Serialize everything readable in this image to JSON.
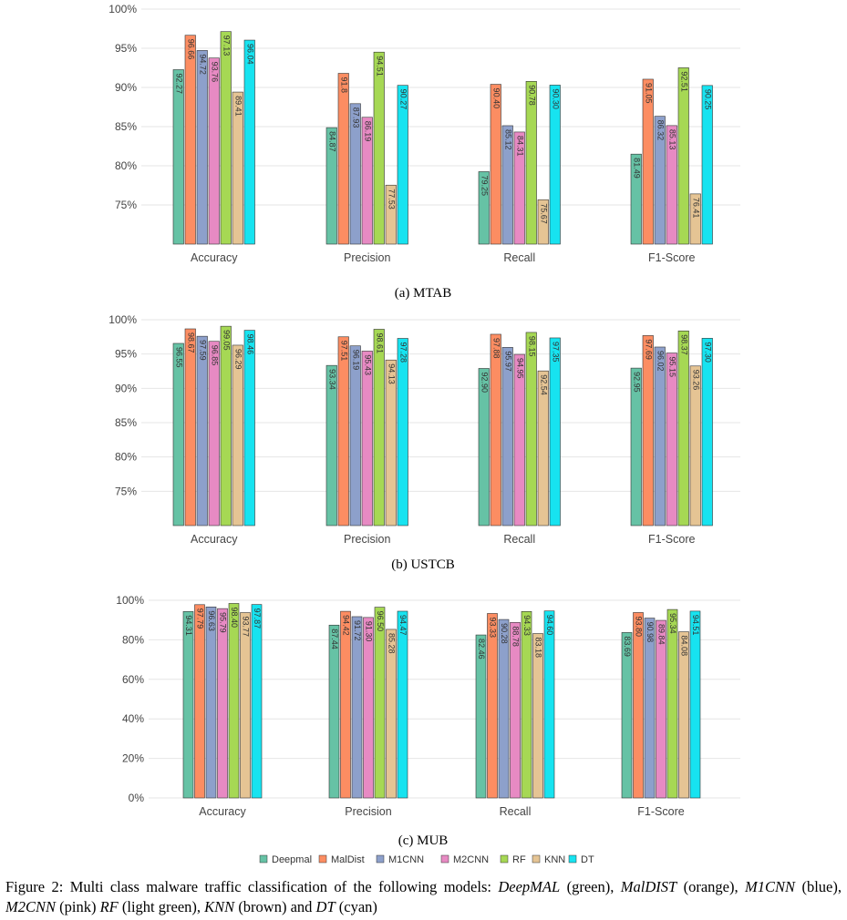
{
  "legend": [
    "Deepmal",
    "MalDist",
    "M1CNN",
    "M2CNN",
    "RF",
    "KNN",
    "DT"
  ],
  "colors": [
    "#66c2a5",
    "#fc8d62",
    "#8da0cb",
    "#e78ac3",
    "#a6d854",
    "#e5c494",
    "#17e3f0"
  ],
  "chart_data": [
    {
      "type": "bar",
      "subtitle": "(a) MTAB",
      "categories": [
        "Accuracy",
        "Precision",
        "Recall",
        "F1-Score"
      ],
      "ylim": [
        70,
        100
      ],
      "ytick_values": [
        75,
        80,
        85,
        90,
        95,
        100
      ],
      "ytick_labels": [
        "75%",
        "80%",
        "85%",
        "90%",
        "95%",
        "100%"
      ],
      "series": [
        {
          "name": "Deepmal",
          "values": [
            92.27,
            84.87,
            79.25,
            81.49
          ],
          "labels": [
            "92.27",
            "84.87",
            "79.25",
            "81.49"
          ]
        },
        {
          "name": "MalDist",
          "values": [
            96.66,
            91.8,
            90.4,
            91.05
          ],
          "labels": [
            "96.66",
            "91.8",
            "90.40",
            "91.05"
          ]
        },
        {
          "name": "M1CNN",
          "values": [
            94.72,
            87.93,
            85.12,
            86.32
          ],
          "labels": [
            "94.72",
            "87.93",
            "85.12",
            "86.32"
          ]
        },
        {
          "name": "M2CNN",
          "values": [
            93.76,
            86.19,
            84.31,
            85.13
          ],
          "labels": [
            "93.76",
            "86.19",
            "84.31",
            "85.13"
          ]
        },
        {
          "name": "RF",
          "values": [
            97.13,
            94.51,
            90.78,
            92.51
          ],
          "labels": [
            "97.13",
            "94.51",
            "90.78",
            "92.51"
          ]
        },
        {
          "name": "KNN",
          "values": [
            89.41,
            77.53,
            75.67,
            76.41
          ],
          "labels": [
            "89.41",
            "77.53",
            "75.67",
            "76.41"
          ]
        },
        {
          "name": "DT",
          "values": [
            96.04,
            90.27,
            90.3,
            90.25
          ],
          "labels": [
            "96.04",
            "90.27",
            "90.30",
            "90.25"
          ]
        }
      ]
    },
    {
      "type": "bar",
      "subtitle": "(b) USTCB",
      "categories": [
        "Accuracy",
        "Precision",
        "Recall",
        "F1-Score"
      ],
      "ylim": [
        70,
        100
      ],
      "ytick_values": [
        75,
        80,
        85,
        90,
        95,
        100
      ],
      "ytick_labels": [
        "75%",
        "80%",
        "85%",
        "90%",
        "95%",
        "100%"
      ],
      "series": [
        {
          "name": "Deepmal",
          "values": [
            96.55,
            93.34,
            92.9,
            92.95
          ],
          "labels": [
            "96.55",
            "93.34",
            "92.90",
            "92.95"
          ]
        },
        {
          "name": "MalDist",
          "values": [
            98.67,
            97.51,
            97.88,
            97.69
          ],
          "labels": [
            "98.67",
            "97.51",
            "97.88",
            "97.69"
          ]
        },
        {
          "name": "M1CNN",
          "values": [
            97.59,
            96.19,
            95.97,
            96.02
          ],
          "labels": [
            "97.59",
            "96.19",
            "95.97",
            "96.02"
          ]
        },
        {
          "name": "M2CNN",
          "values": [
            96.85,
            95.43,
            94.95,
            95.15
          ],
          "labels": [
            "96.85",
            "95.43",
            "94.95",
            "95.15"
          ]
        },
        {
          "name": "RF",
          "values": [
            99.05,
            98.61,
            98.15,
            98.37
          ],
          "labels": [
            "99.05",
            "98.61",
            "98.15",
            "98.37"
          ]
        },
        {
          "name": "KNN",
          "values": [
            96.29,
            94.13,
            92.54,
            93.26
          ],
          "labels": [
            "96.29",
            "94.13",
            "92.54",
            "93.26"
          ]
        },
        {
          "name": "DT",
          "values": [
            98.46,
            97.28,
            97.35,
            97.3
          ],
          "labels": [
            "98.46",
            "97.28",
            "97.35",
            "97.30"
          ]
        }
      ]
    },
    {
      "type": "bar",
      "subtitle": "(c) MUB",
      "categories": [
        "Accuracy",
        "Precision",
        "Recall",
        "F1-Score"
      ],
      "ylim": [
        0,
        100
      ],
      "ytick_values": [
        0,
        20,
        40,
        60,
        80,
        100
      ],
      "ytick_labels": [
        "0%",
        "20%",
        "40%",
        "60%",
        "80%",
        "100%"
      ],
      "series": [
        {
          "name": "Deepmal",
          "values": [
            94.31,
            87.44,
            82.46,
            83.69
          ],
          "labels": [
            "94.31",
            "87.44",
            "82.46",
            "83.69"
          ]
        },
        {
          "name": "MalDist",
          "values": [
            97.79,
            94.42,
            93.33,
            93.8
          ],
          "labels": [
            "97.79",
            "94.42",
            "93.33",
            "93.80"
          ]
        },
        {
          "name": "M1CNN",
          "values": [
            96.63,
            91.72,
            90.28,
            90.98
          ],
          "labels": [
            "96.63",
            "91.72",
            "90.28",
            "90.98"
          ]
        },
        {
          "name": "M2CNN",
          "values": [
            95.79,
            91.3,
            88.78,
            89.84
          ],
          "labels": [
            "95.79",
            "91.30",
            "88.78",
            "89.84"
          ]
        },
        {
          "name": "RF",
          "values": [
            98.4,
            96.5,
            94.33,
            95.34
          ],
          "labels": [
            "98.40",
            "96.50",
            "94.33",
            "95.34"
          ]
        },
        {
          "name": "KNN",
          "values": [
            93.77,
            85.28,
            83.18,
            84.08
          ],
          "labels": [
            "93.77",
            "85.28",
            "83.18",
            "84.08"
          ]
        },
        {
          "name": "DT",
          "values": [
            97.87,
            94.47,
            94.6,
            94.51
          ],
          "labels": [
            "97.87",
            "94.47",
            "94.60",
            "94.51"
          ]
        }
      ]
    }
  ],
  "caption": {
    "prefix": "Figure 2: Multi class malware traffic classification of the following models: ",
    "parts": [
      {
        "name": "DeepMAL",
        "desc": " (green), "
      },
      {
        "name": "MalDIST",
        "desc": " (orange), "
      },
      {
        "name": "M1CNN",
        "desc": " (blue), "
      },
      {
        "name": "M2CNN",
        "desc": " (pink) "
      },
      {
        "name": "RF",
        "desc": " (light green), "
      },
      {
        "name": "KNN",
        "desc": " (brown) and "
      },
      {
        "name": "DT",
        "desc": " (cyan)"
      }
    ]
  }
}
